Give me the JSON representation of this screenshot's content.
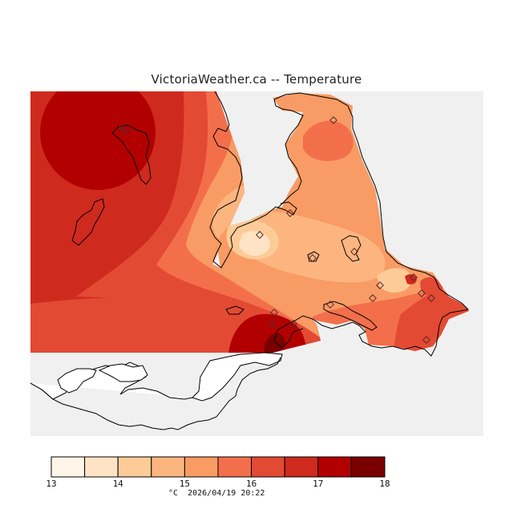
{
  "title": "VictoriaWeather.ca -- Temperature",
  "legend": {
    "unit": "°C",
    "timestamp": "2026/04/19 20:22",
    "tick_labels": [
      "13",
      "14",
      "15",
      "16",
      "17",
      "18"
    ],
    "bins": [
      {
        "from": 13.0,
        "to": 13.5,
        "color": "#fff4e8"
      },
      {
        "from": 13.5,
        "to": 14.0,
        "color": "#ffe3c4"
      },
      {
        "from": 14.0,
        "to": 14.5,
        "color": "#fdcb98"
      },
      {
        "from": 14.5,
        "to": 15.0,
        "color": "#fcb57f"
      },
      {
        "from": 15.0,
        "to": 15.5,
        "color": "#f99b64"
      },
      {
        "from": 15.5,
        "to": 16.0,
        "color": "#f36f4b"
      },
      {
        "from": 16.0,
        "to": 16.5,
        "color": "#e34a33"
      },
      {
        "from": 16.5,
        "to": 17.0,
        "color": "#cf2a1e"
      },
      {
        "from": 17.0,
        "to": 17.5,
        "color": "#b20000"
      },
      {
        "from": 17.5,
        "to": 18.0,
        "color": "#7a0000"
      }
    ]
  },
  "colors": {
    "background_outside_data": "#f0f0f0",
    "coastline": "#000000",
    "station_marker": "#5a2a2a"
  }
}
